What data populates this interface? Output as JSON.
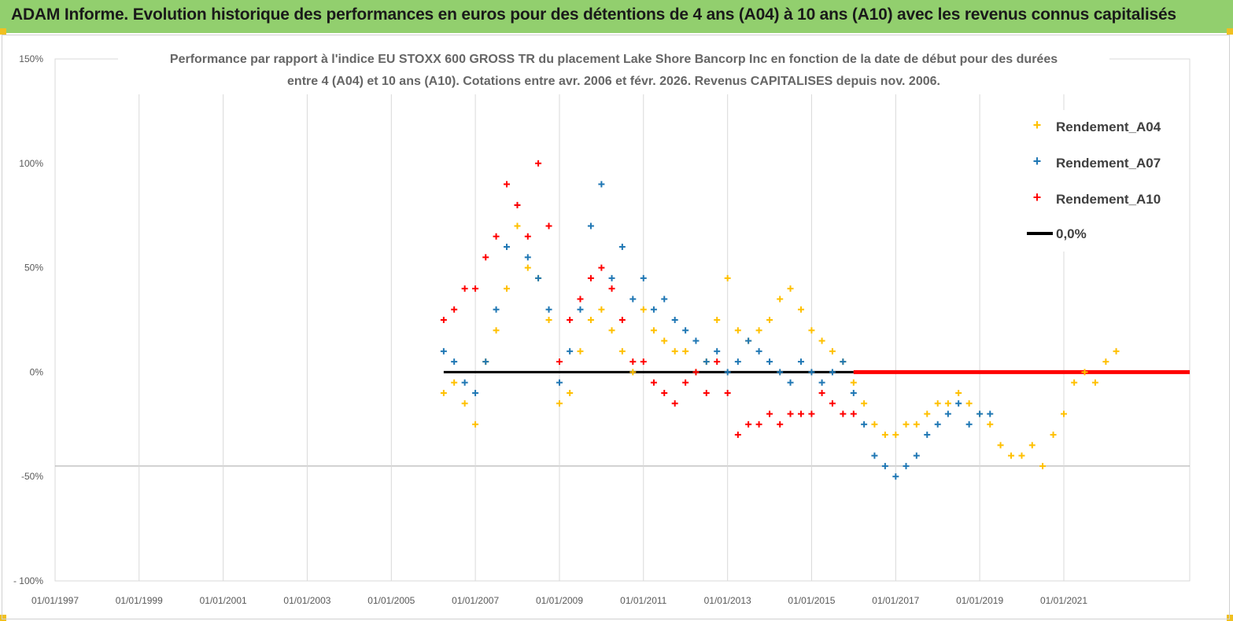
{
  "header": {
    "title": "ADAM Informe. Evolution historique des performances en euros pour des détentions de 4 ans (A04) à 10 ans (A10) avec les revenus connus capitalisés"
  },
  "chart_data": {
    "type": "scatter",
    "title_lines": [
      "Performance par rapport à l'indice EU STOXX 600 GROSS TR  du placement Lake Shore Bancorp Inc en fonction de la date de début pour des durées",
      "entre 4 (A04) et 10 ans (A10). Cotations entre avr. 2006 et févr. 2026. Revenus CAPITALISES depuis nov. 2006."
    ],
    "x_ticks": [
      "01/01/1997",
      "01/01/1999",
      "01/01/2001",
      "01/01/2003",
      "01/01/2005",
      "01/01/2007",
      "01/01/2009",
      "01/01/2011",
      "01/01/2013",
      "01/01/2015",
      "01/01/2017",
      "01/01/2019",
      "01/01/2021"
    ],
    "y_ticks": [
      "150%",
      "100%",
      "50%",
      "0%",
      "-50%",
      "- 100%"
    ],
    "ylim": [
      -100,
      150
    ],
    "xlim": [
      "1997-01-01",
      "2023-12-31"
    ],
    "grid": true,
    "legend_position": "top-right",
    "legend": [
      "Rendement_A04",
      "Rendement_A07",
      "Rendement_A10",
      "0,0%"
    ],
    "colors": {
      "A04": "#ffc000",
      "A07": "#1f77b4",
      "A10": "#ff0000",
      "zero": "#000000"
    },
    "series": [
      {
        "name": "Rendement_A04",
        "x": [
          "2006-04-01",
          "2006-07-01",
          "2006-10-01",
          "2007-01-01",
          "2007-04-01",
          "2007-07-01",
          "2007-10-01",
          "2008-01-01",
          "2008-04-01",
          "2008-07-01",
          "2008-10-01",
          "2009-01-01",
          "2009-04-01",
          "2009-07-01",
          "2009-10-01",
          "2010-01-01",
          "2010-04-01",
          "2010-07-01",
          "2010-10-01",
          "2011-01-01",
          "2011-04-01",
          "2011-07-01",
          "2011-10-01",
          "2012-01-01",
          "2012-04-01",
          "2012-07-01",
          "2012-10-01",
          "2013-01-01",
          "2013-04-01",
          "2013-07-01",
          "2013-10-01",
          "2014-01-01",
          "2014-04-01",
          "2014-07-01",
          "2014-10-01",
          "2015-01-01",
          "2015-04-01",
          "2015-07-01",
          "2015-10-01",
          "2016-01-01",
          "2016-04-01",
          "2016-07-01",
          "2016-10-01",
          "2017-01-01",
          "2017-04-01",
          "2017-07-01",
          "2017-10-01",
          "2018-01-01",
          "2018-04-01",
          "2018-07-01",
          "2018-10-01",
          "2019-01-01",
          "2019-04-01",
          "2019-07-01",
          "2019-10-01",
          "2020-01-01",
          "2020-04-01",
          "2020-07-01",
          "2020-10-01",
          "2021-01-01",
          "2021-04-01",
          "2021-07-01",
          "2021-10-01",
          "2022-01-01",
          "2022-04-01"
        ],
        "y": [
          -10,
          -5,
          -15,
          -25,
          5,
          20,
          40,
          70,
          50,
          45,
          25,
          -15,
          -10,
          10,
          25,
          30,
          20,
          10,
          0,
          30,
          20,
          15,
          10,
          10,
          0,
          5,
          25,
          45,
          20,
          15,
          20,
          25,
          35,
          40,
          30,
          20,
          15,
          10,
          5,
          -5,
          -15,
          -25,
          -30,
          -30,
          -25,
          -25,
          -20,
          -15,
          -15,
          -10,
          -15,
          -20,
          -25,
          -35,
          -40,
          -40,
          -35,
          -45,
          -30,
          -20,
          -5,
          0,
          -5,
          5,
          10
        ]
      },
      {
        "name": "Rendement_A07",
        "x": [
          "2006-04-01",
          "2006-07-01",
          "2006-10-01",
          "2007-01-01",
          "2007-04-01",
          "2007-07-01",
          "2007-10-01",
          "2008-01-01",
          "2008-04-01",
          "2008-07-01",
          "2008-10-01",
          "2009-01-01",
          "2009-04-01",
          "2009-07-01",
          "2009-10-01",
          "2010-01-01",
          "2010-04-01",
          "2010-07-01",
          "2010-10-01",
          "2011-01-01",
          "2011-04-01",
          "2011-07-01",
          "2011-10-01",
          "2012-01-01",
          "2012-04-01",
          "2012-07-01",
          "2012-10-01",
          "2013-01-01",
          "2013-04-01",
          "2013-07-01",
          "2013-10-01",
          "2014-01-01",
          "2014-04-01",
          "2014-07-01",
          "2014-10-01",
          "2015-01-01",
          "2015-04-01",
          "2015-07-01",
          "2015-10-01",
          "2016-01-01",
          "2016-04-01",
          "2016-07-01",
          "2016-10-01",
          "2017-01-01",
          "2017-04-01",
          "2017-07-01",
          "2017-10-01",
          "2018-01-01",
          "2018-04-01",
          "2018-07-01",
          "2018-10-01",
          "2019-01-01",
          "2019-04-01"
        ],
        "y": [
          10,
          5,
          -5,
          -10,
          5,
          30,
          60,
          80,
          55,
          45,
          30,
          -5,
          10,
          30,
          70,
          90,
          45,
          60,
          35,
          45,
          30,
          35,
          25,
          20,
          15,
          5,
          10,
          0,
          5,
          15,
          10,
          5,
          0,
          -5,
          5,
          0,
          -5,
          0,
          5,
          -10,
          -25,
          -40,
          -45,
          -50,
          -45,
          -40,
          -30,
          -25,
          -20,
          -15,
          -25,
          -20,
          -20
        ]
      },
      {
        "name": "Rendement_A10",
        "x": [
          "2006-04-01",
          "2006-07-01",
          "2006-10-01",
          "2007-01-01",
          "2007-04-01",
          "2007-07-01",
          "2007-10-01",
          "2008-01-01",
          "2008-04-01",
          "2008-07-01",
          "2008-10-01",
          "2009-01-01",
          "2009-04-01",
          "2009-07-01",
          "2009-10-01",
          "2010-01-01",
          "2010-04-01",
          "2010-07-01",
          "2010-10-01",
          "2011-01-01",
          "2011-04-01",
          "2011-07-01",
          "2011-10-01",
          "2012-01-01",
          "2012-04-01",
          "2012-07-01",
          "2012-10-01",
          "2013-01-01",
          "2013-04-01",
          "2013-07-01",
          "2013-10-01",
          "2014-01-01",
          "2014-04-01",
          "2014-07-01",
          "2014-10-01",
          "2015-01-01",
          "2015-04-01",
          "2015-07-01",
          "2015-10-01",
          "2016-01-01"
        ],
        "y": [
          25,
          30,
          40,
          40,
          55,
          65,
          90,
          80,
          65,
          100,
          70,
          5,
          25,
          35,
          45,
          50,
          40,
          25,
          5,
          5,
          -5,
          -10,
          -15,
          -5,
          0,
          -10,
          5,
          -10,
          -30,
          -25,
          -25,
          -20,
          -25,
          -20,
          -20,
          -20,
          -10,
          -15,
          -20,
          -20
        ]
      },
      {
        "name": "0,0%",
        "x": [
          "2006-04-01",
          "2023-12-31"
        ],
        "y": [
          0,
          0
        ]
      }
    ]
  }
}
